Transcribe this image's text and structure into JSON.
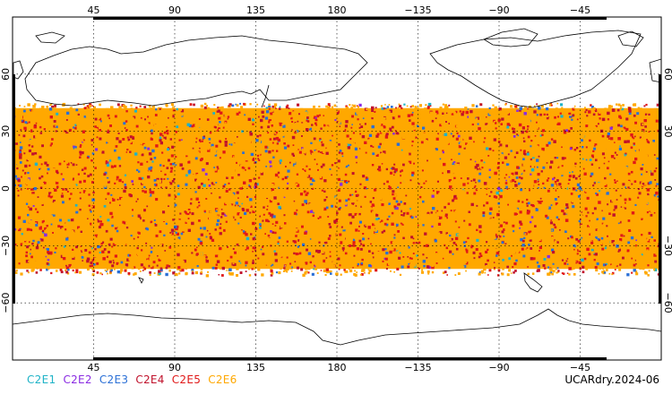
{
  "map": {
    "top_lon_ticks": [
      "45",
      "90",
      "135",
      "180",
      "−135",
      "−90",
      "−45"
    ],
    "bottom_lon_ticks": [
      "45",
      "90",
      "135",
      "180",
      "−135",
      "−90",
      "−45"
    ],
    "lat_ticks": [
      "60",
      "30",
      "0",
      "−30",
      "−60"
    ],
    "lon_values": [
      45,
      90,
      135,
      180,
      -135,
      -90,
      -45
    ],
    "lat_values": [
      60,
      30,
      0,
      -30,
      -60
    ],
    "lon_range": [
      0,
      360
    ],
    "lat_range": [
      -90,
      90
    ],
    "coverage_lat_range": [
      -45,
      45
    ],
    "colors": {
      "C2E1": "#1fb3c7",
      "C2E2": "#8a2be2",
      "C2E3": "#2a6fd6",
      "C2E4": "#c0122c",
      "C2E5": "#e01818",
      "C2E6": "#ffa800"
    }
  },
  "legend": [
    {
      "label": "C2E1",
      "color": "#1fb3c7"
    },
    {
      "label": "C2E2",
      "color": "#8a2be2"
    },
    {
      "label": "C2E3",
      "color": "#2a6fd6"
    },
    {
      "label": "C2E4",
      "color": "#c0122c"
    },
    {
      "label": "C2E5",
      "color": "#e01818"
    },
    {
      "label": "C2E6",
      "color": "#ffa800"
    }
  ],
  "dataset_label": "UCARdry.2024-06"
}
